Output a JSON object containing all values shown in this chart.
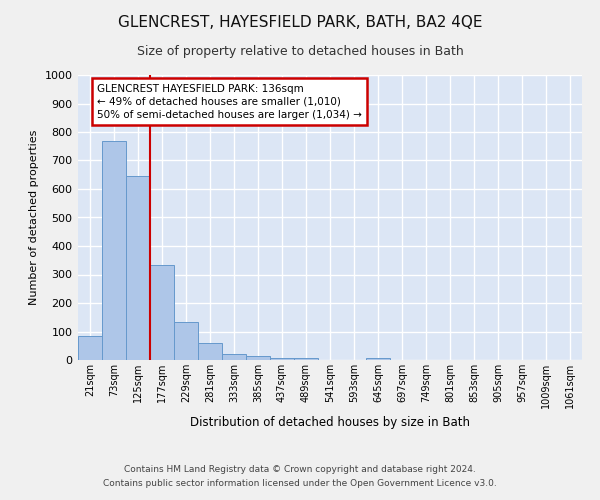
{
  "title": "GLENCREST, HAYESFIELD PARK, BATH, BA2 4QE",
  "subtitle": "Size of property relative to detached houses in Bath",
  "xlabel": "Distribution of detached houses by size in Bath",
  "ylabel": "Number of detached properties",
  "bar_labels": [
    "21sqm",
    "73sqm",
    "125sqm",
    "177sqm",
    "229sqm",
    "281sqm",
    "333sqm",
    "385sqm",
    "437sqm",
    "489sqm",
    "541sqm",
    "593sqm",
    "645sqm",
    "697sqm",
    "749sqm",
    "801sqm",
    "853sqm",
    "905sqm",
    "957sqm",
    "1009sqm",
    "1061sqm"
  ],
  "bar_values": [
    85,
    770,
    645,
    335,
    135,
    60,
    22,
    15,
    8,
    6,
    0,
    0,
    8,
    0,
    0,
    0,
    0,
    0,
    0,
    0,
    0
  ],
  "bar_color": "#aec6e8",
  "bar_edge_color": "#6699cc",
  "bg_color": "#dce6f5",
  "fig_bg_color": "#f0f0f0",
  "grid_color": "#ffffff",
  "red_line_x": 2.5,
  "annotation_text": "GLENCREST HAYESFIELD PARK: 136sqm\n← 49% of detached houses are smaller (1,010)\n50% of semi-detached houses are larger (1,034) →",
  "annotation_box_color": "#ffffff",
  "annotation_border_color": "#cc0000",
  "ylim": [
    0,
    1000
  ],
  "yticks": [
    0,
    100,
    200,
    300,
    400,
    500,
    600,
    700,
    800,
    900,
    1000
  ],
  "footer_line1": "Contains HM Land Registry data © Crown copyright and database right 2024.",
  "footer_line2": "Contains public sector information licensed under the Open Government Licence v3.0."
}
